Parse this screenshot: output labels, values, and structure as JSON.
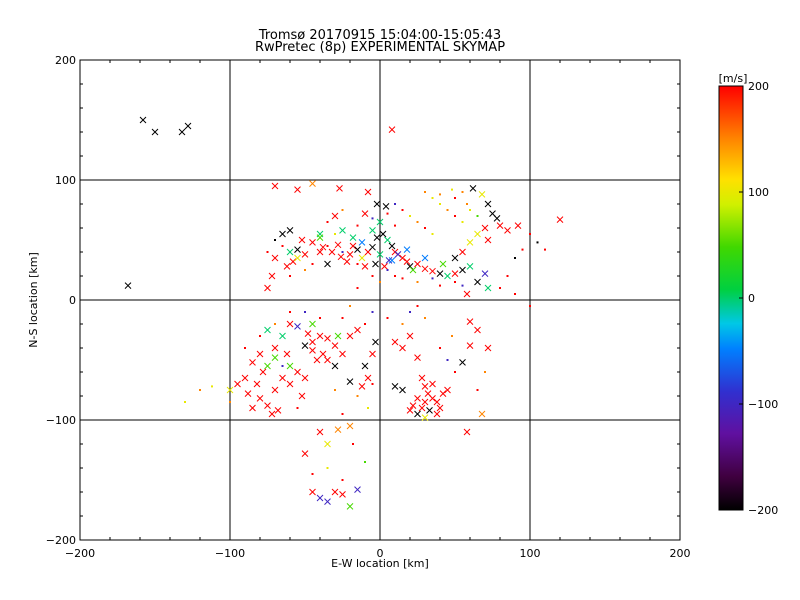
{
  "chart_data": {
    "type": "scatter",
    "title": "Tromsø 20170915 15:04:00-15:05:43",
    "subtitle": "RwPretec (8p) EXPERIMENTAL SKYMAP",
    "xlabel": "E-W location [km]",
    "ylabel": "N-S location [km]",
    "xlim": [
      -200,
      200
    ],
    "ylim": [
      -200,
      200
    ],
    "xticks": [
      -200,
      -100,
      0,
      100,
      200
    ],
    "yticks": [
      -200,
      -100,
      0,
      100,
      200
    ],
    "grid": true,
    "colorbar": {
      "label": "[m/s]",
      "min": -200,
      "max": 200,
      "ticks": [
        200,
        100,
        0,
        -100,
        -200
      ],
      "colormap": "rainbow-black-to-red"
    },
    "points": [
      [
        -158,
        150,
        -200,
        "x"
      ],
      [
        -150,
        140,
        -200,
        "x"
      ],
      [
        -132,
        140,
        -200,
        "x"
      ],
      [
        -128,
        145,
        -200,
        "x"
      ],
      [
        -168,
        12,
        -200,
        "x"
      ],
      [
        8,
        142,
        200,
        "x"
      ],
      [
        -70,
        95,
        200,
        "x"
      ],
      [
        -55,
        92,
        200,
        "x"
      ],
      [
        -45,
        97,
        150,
        "x"
      ],
      [
        -27,
        93,
        200,
        "x"
      ],
      [
        -8,
        90,
        200,
        "x"
      ],
      [
        -60,
        58,
        -200,
        "x"
      ],
      [
        -65,
        55,
        -200,
        "x"
      ],
      [
        -55,
        42,
        -200,
        "x"
      ],
      [
        -45,
        48,
        200,
        "x"
      ],
      [
        -38,
        44,
        200,
        "x"
      ],
      [
        -32,
        40,
        200,
        "x"
      ],
      [
        -26,
        36,
        200,
        "x"
      ],
      [
        -20,
        38,
        200,
        "x"
      ],
      [
        -18,
        45,
        200,
        "x"
      ],
      [
        -15,
        42,
        -200,
        "x"
      ],
      [
        -12,
        35,
        100,
        "x"
      ],
      [
        -8,
        40,
        200,
        "x"
      ],
      [
        -5,
        44,
        -200,
        "x"
      ],
      [
        -2,
        52,
        -200,
        "x"
      ],
      [
        2,
        55,
        -200,
        "x"
      ],
      [
        5,
        50,
        0,
        "x"
      ],
      [
        8,
        45,
        -200,
        "x"
      ],
      [
        10,
        40,
        200,
        "x"
      ],
      [
        12,
        38,
        -100,
        "x"
      ],
      [
        15,
        35,
        200,
        "x"
      ],
      [
        18,
        32,
        200,
        "x"
      ],
      [
        20,
        28,
        -200,
        "x"
      ],
      [
        25,
        30,
        200,
        "x"
      ],
      [
        30,
        26,
        200,
        "x"
      ],
      [
        35,
        24,
        200,
        "x"
      ],
      [
        40,
        22,
        -200,
        "x"
      ],
      [
        45,
        20,
        0,
        "x"
      ],
      [
        50,
        22,
        200,
        "x"
      ],
      [
        55,
        25,
        -200,
        "x"
      ],
      [
        60,
        28,
        0,
        "x"
      ],
      [
        0,
        38,
        0,
        "x"
      ],
      [
        -3,
        30,
        -200,
        "x"
      ],
      [
        3,
        28,
        200,
        "x"
      ],
      [
        6,
        33,
        -100,
        "x"
      ],
      [
        -10,
        28,
        200,
        "x"
      ],
      [
        -22,
        32,
        200,
        "x"
      ],
      [
        -28,
        46,
        200,
        "x"
      ],
      [
        -35,
        30,
        -200,
        "x"
      ],
      [
        -40,
        40,
        200,
        "x"
      ],
      [
        -50,
        38,
        200,
        "x"
      ],
      [
        -58,
        32,
        200,
        "x"
      ],
      [
        -62,
        28,
        200,
        "x"
      ],
      [
        -70,
        35,
        200,
        "x"
      ],
      [
        -75,
        10,
        200,
        "x"
      ],
      [
        -72,
        20,
        200,
        "x"
      ],
      [
        -2,
        80,
        -200,
        "x"
      ],
      [
        4,
        78,
        -200,
        "x"
      ],
      [
        0,
        65,
        0,
        "x"
      ],
      [
        -10,
        72,
        200,
        "x"
      ],
      [
        -30,
        70,
        200,
        "x"
      ],
      [
        -18,
        52,
        0,
        "x"
      ],
      [
        -25,
        58,
        0,
        "x"
      ],
      [
        -40,
        55,
        0,
        "x"
      ],
      [
        -52,
        50,
        200,
        "x"
      ],
      [
        62,
        93,
        -200,
        "x"
      ],
      [
        68,
        88,
        100,
        "x"
      ],
      [
        72,
        80,
        -200,
        "x"
      ],
      [
        75,
        72,
        -200,
        "x"
      ],
      [
        78,
        68,
        -200,
        "x"
      ],
      [
        70,
        60,
        200,
        "x"
      ],
      [
        65,
        55,
        100,
        "x"
      ],
      [
        80,
        62,
        200,
        "x"
      ],
      [
        85,
        58,
        200,
        "x"
      ],
      [
        60,
        48,
        100,
        "x"
      ],
      [
        72,
        50,
        200,
        "x"
      ],
      [
        92,
        62,
        200,
        "x"
      ],
      [
        120,
        67,
        200,
        "x"
      ],
      [
        55,
        40,
        200,
        "x"
      ],
      [
        50,
        35,
        -200,
        "x"
      ],
      [
        70,
        22,
        -100,
        "x"
      ],
      [
        72,
        10,
        0,
        "x"
      ],
      [
        65,
        15,
        -200,
        "x"
      ],
      [
        58,
        5,
        200,
        "x"
      ],
      [
        -60,
        -20,
        200,
        "x"
      ],
      [
        -55,
        -22,
        -100,
        "x"
      ],
      [
        -48,
        -28,
        200,
        "x"
      ],
      [
        -45,
        -35,
        200,
        "x"
      ],
      [
        -40,
        -30,
        200,
        "x"
      ],
      [
        -35,
        -32,
        200,
        "x"
      ],
      [
        -30,
        -38,
        200,
        "x"
      ],
      [
        -38,
        -45,
        200,
        "x"
      ],
      [
        -45,
        -42,
        200,
        "x"
      ],
      [
        -50,
        -38,
        -200,
        "x"
      ],
      [
        -42,
        -50,
        200,
        "x"
      ],
      [
        -35,
        -50,
        200,
        "x"
      ],
      [
        -65,
        -30,
        0,
        "x"
      ],
      [
        -70,
        -40,
        200,
        "x"
      ],
      [
        -62,
        -45,
        200,
        "x"
      ],
      [
        -75,
        -25,
        0,
        "x"
      ],
      [
        -80,
        -45,
        200,
        "x"
      ],
      [
        -85,
        -52,
        200,
        "x"
      ],
      [
        -78,
        -60,
        200,
        "x"
      ],
      [
        -82,
        -70,
        200,
        "x"
      ],
      [
        -90,
        -65,
        200,
        "x"
      ],
      [
        -95,
        -70,
        200,
        "x"
      ],
      [
        -88,
        -78,
        200,
        "x"
      ],
      [
        -80,
        -82,
        200,
        "x"
      ],
      [
        -75,
        -88,
        200,
        "x"
      ],
      [
        -72,
        -95,
        200,
        "x"
      ],
      [
        -68,
        -92,
        200,
        "x"
      ],
      [
        -100,
        -75,
        100,
        "x"
      ],
      [
        -85,
        -90,
        200,
        "x"
      ],
      [
        -60,
        -70,
        200,
        "x"
      ],
      [
        -55,
        -60,
        200,
        "x"
      ],
      [
        -50,
        -65,
        200,
        "x"
      ],
      [
        -52,
        -80,
        200,
        "x"
      ],
      [
        -65,
        -65,
        200,
        "x"
      ],
      [
        -70,
        -75,
        200,
        "x"
      ],
      [
        -20,
        -30,
        200,
        "x"
      ],
      [
        -15,
        -25,
        200,
        "x"
      ],
      [
        -25,
        -45,
        200,
        "x"
      ],
      [
        -30,
        -55,
        -200,
        "x"
      ],
      [
        -20,
        -68,
        -200,
        "x"
      ],
      [
        -5,
        -45,
        200,
        "x"
      ],
      [
        -10,
        -55,
        -200,
        "x"
      ],
      [
        -8,
        -65,
        200,
        "x"
      ],
      [
        -12,
        -72,
        200,
        "x"
      ],
      [
        -3,
        -35,
        -200,
        "x"
      ],
      [
        10,
        -35,
        200,
        "x"
      ],
      [
        15,
        -40,
        200,
        "x"
      ],
      [
        20,
        -30,
        200,
        "x"
      ],
      [
        25,
        -48,
        200,
        "x"
      ],
      [
        28,
        -65,
        200,
        "x"
      ],
      [
        30,
        -72,
        200,
        "x"
      ],
      [
        32,
        -78,
        200,
        "x"
      ],
      [
        35,
        -82,
        200,
        "x"
      ],
      [
        38,
        -85,
        200,
        "x"
      ],
      [
        30,
        -85,
        200,
        "x"
      ],
      [
        25,
        -82,
        200,
        "x"
      ],
      [
        28,
        -90,
        200,
        "x"
      ],
      [
        33,
        -92,
        -200,
        "x"
      ],
      [
        38,
        -95,
        200,
        "x"
      ],
      [
        40,
        -90,
        200,
        "x"
      ],
      [
        42,
        -78,
        200,
        "x"
      ],
      [
        22,
        -88,
        200,
        "x"
      ],
      [
        20,
        -92,
        200,
        "x"
      ],
      [
        35,
        -70,
        200,
        "x"
      ],
      [
        45,
        -75,
        200,
        "x"
      ],
      [
        15,
        -75,
        -200,
        "x"
      ],
      [
        10,
        -72,
        -200,
        "x"
      ],
      [
        25,
        -95,
        -200,
        "x"
      ],
      [
        30,
        -98,
        100,
        "x"
      ],
      [
        55,
        -52,
        -200,
        "x"
      ],
      [
        60,
        -38,
        200,
        "x"
      ],
      [
        65,
        -25,
        200,
        "x"
      ],
      [
        60,
        -18,
        200,
        "x"
      ],
      [
        72,
        -40,
        200,
        "x"
      ],
      [
        58,
        -110,
        200,
        "x"
      ],
      [
        68,
        -95,
        150,
        "x"
      ],
      [
        -50,
        -128,
        200,
        "x"
      ],
      [
        -45,
        -160,
        200,
        "x"
      ],
      [
        -40,
        -165,
        -100,
        "x"
      ],
      [
        -35,
        -168,
        -100,
        "x"
      ],
      [
        -30,
        -160,
        200,
        "x"
      ],
      [
        -25,
        -162,
        200,
        "x"
      ],
      [
        -20,
        -172,
        50,
        "x"
      ],
      [
        -15,
        -158,
        -100,
        "x"
      ],
      [
        -28,
        -108,
        150,
        "x"
      ],
      [
        -20,
        -105,
        150,
        "x"
      ],
      [
        -40,
        -110,
        200,
        "x"
      ],
      [
        -35,
        -120,
        100,
        "x"
      ],
      [
        -60,
        -55,
        50,
        "x"
      ],
      [
        -45,
        -20,
        50,
        "x"
      ],
      [
        -28,
        -30,
        50,
        "x"
      ],
      [
        -75,
        -55,
        50,
        "x"
      ],
      [
        -70,
        -48,
        50,
        "x"
      ],
      [
        -60,
        40,
        0,
        "x"
      ],
      [
        -40,
        52,
        50,
        "x"
      ],
      [
        -5,
        58,
        0,
        "x"
      ],
      [
        -12,
        48,
        -50,
        "x"
      ],
      [
        8,
        33,
        -50,
        "x"
      ],
      [
        18,
        42,
        -50,
        "x"
      ],
      [
        22,
        25,
        50,
        "x"
      ],
      [
        30,
        35,
        -50,
        "x"
      ],
      [
        42,
        30,
        50,
        "x"
      ],
      [
        -55,
        35,
        100,
        "x"
      ],
      [
        -120,
        -75,
        150,
        "."
      ],
      [
        -130,
        -85,
        100,
        "."
      ],
      [
        -112,
        -72,
        100,
        "."
      ],
      [
        -100,
        -85,
        150,
        "."
      ],
      [
        -15,
        10,
        200,
        "."
      ],
      [
        -20,
        -5,
        150,
        "."
      ],
      [
        -10,
        -20,
        200,
        "."
      ],
      [
        -25,
        -15,
        200,
        "."
      ],
      [
        -5,
        -10,
        -100,
        "."
      ],
      [
        5,
        -15,
        200,
        "."
      ],
      [
        15,
        -20,
        150,
        "."
      ],
      [
        20,
        -10,
        -100,
        "."
      ],
      [
        25,
        -5,
        200,
        "."
      ],
      [
        30,
        -15,
        150,
        "."
      ],
      [
        40,
        -40,
        200,
        "."
      ],
      [
        45,
        -50,
        -100,
        "."
      ],
      [
        50,
        -60,
        200,
        "."
      ],
      [
        48,
        -30,
        150,
        "."
      ],
      [
        -5,
        -70,
        200,
        "."
      ],
      [
        -15,
        -80,
        150,
        "."
      ],
      [
        -8,
        -90,
        100,
        "."
      ],
      [
        -25,
        -95,
        200,
        "."
      ],
      [
        -30,
        -75,
        150,
        "."
      ],
      [
        -18,
        -120,
        200,
        "."
      ],
      [
        -35,
        -140,
        100,
        "."
      ],
      [
        -25,
        -150,
        200,
        "."
      ],
      [
        -10,
        -135,
        50,
        "."
      ],
      [
        -45,
        -145,
        200,
        "."
      ],
      [
        95,
        42,
        200,
        "."
      ],
      [
        100,
        55,
        200,
        "."
      ],
      [
        105,
        48,
        -200,
        "."
      ],
      [
        110,
        42,
        200,
        "."
      ],
      [
        90,
        35,
        -200,
        "."
      ],
      [
        100,
        -5,
        200,
        "."
      ],
      [
        85,
        20,
        200,
        "."
      ],
      [
        80,
        10,
        200,
        "."
      ],
      [
        90,
        5,
        200,
        "."
      ],
      [
        30,
        90,
        150,
        "."
      ],
      [
        35,
        85,
        100,
        "."
      ],
      [
        40,
        80,
        100,
        "."
      ],
      [
        45,
        75,
        150,
        "."
      ],
      [
        50,
        70,
        200,
        "."
      ],
      [
        55,
        65,
        100,
        "."
      ],
      [
        40,
        88,
        150,
        "."
      ],
      [
        50,
        85,
        200,
        "."
      ],
      [
        58,
        80,
        150,
        "."
      ],
      [
        60,
        75,
        100,
        "."
      ],
      [
        65,
        70,
        50,
        "."
      ],
      [
        48,
        92,
        100,
        "."
      ],
      [
        55,
        90,
        150,
        "."
      ],
      [
        20,
        70,
        100,
        "."
      ],
      [
        25,
        65,
        150,
        "."
      ],
      [
        30,
        60,
        200,
        "."
      ],
      [
        35,
        55,
        100,
        "."
      ],
      [
        15,
        75,
        200,
        "."
      ],
      [
        10,
        80,
        -100,
        "."
      ],
      [
        5,
        72,
        200,
        "."
      ],
      [
        -35,
        45,
        200,
        "."
      ],
      [
        -30,
        55,
        100,
        "."
      ],
      [
        -25,
        40,
        -100,
        "."
      ],
      [
        -15,
        30,
        200,
        "."
      ],
      [
        -5,
        20,
        200,
        "."
      ],
      [
        0,
        15,
        150,
        "."
      ],
      [
        5,
        25,
        -100,
        "."
      ],
      [
        10,
        20,
        200,
        "."
      ],
      [
        15,
        18,
        200,
        "."
      ],
      [
        25,
        15,
        150,
        "."
      ],
      [
        35,
        18,
        -100,
        "."
      ],
      [
        40,
        12,
        200,
        "."
      ],
      [
        50,
        15,
        200,
        "."
      ],
      [
        55,
        12,
        -100,
        "."
      ],
      [
        -45,
        30,
        200,
        "."
      ],
      [
        -50,
        25,
        150,
        "."
      ],
      [
        -60,
        20,
        200,
        "."
      ],
      [
        -65,
        45,
        200,
        "."
      ],
      [
        -70,
        50,
        -200,
        "."
      ],
      [
        -75,
        40,
        200,
        "."
      ],
      [
        -35,
        65,
        200,
        "."
      ],
      [
        -25,
        75,
        150,
        "."
      ],
      [
        -15,
        62,
        200,
        "."
      ],
      [
        -5,
        68,
        -100,
        "."
      ],
      [
        10,
        62,
        200,
        "."
      ],
      [
        -60,
        -10,
        200,
        "."
      ],
      [
        -70,
        -20,
        150,
        "."
      ],
      [
        -80,
        -30,
        200,
        "."
      ],
      [
        -65,
        -55,
        -100,
        "."
      ],
      [
        -55,
        -90,
        200,
        "."
      ],
      [
        -90,
        -40,
        200,
        "."
      ],
      [
        -50,
        -10,
        -100,
        "."
      ],
      [
        -40,
        -15,
        200,
        "."
      ],
      [
        65,
        -75,
        200,
        "."
      ],
      [
        70,
        -60,
        150,
        "."
      ]
    ]
  }
}
